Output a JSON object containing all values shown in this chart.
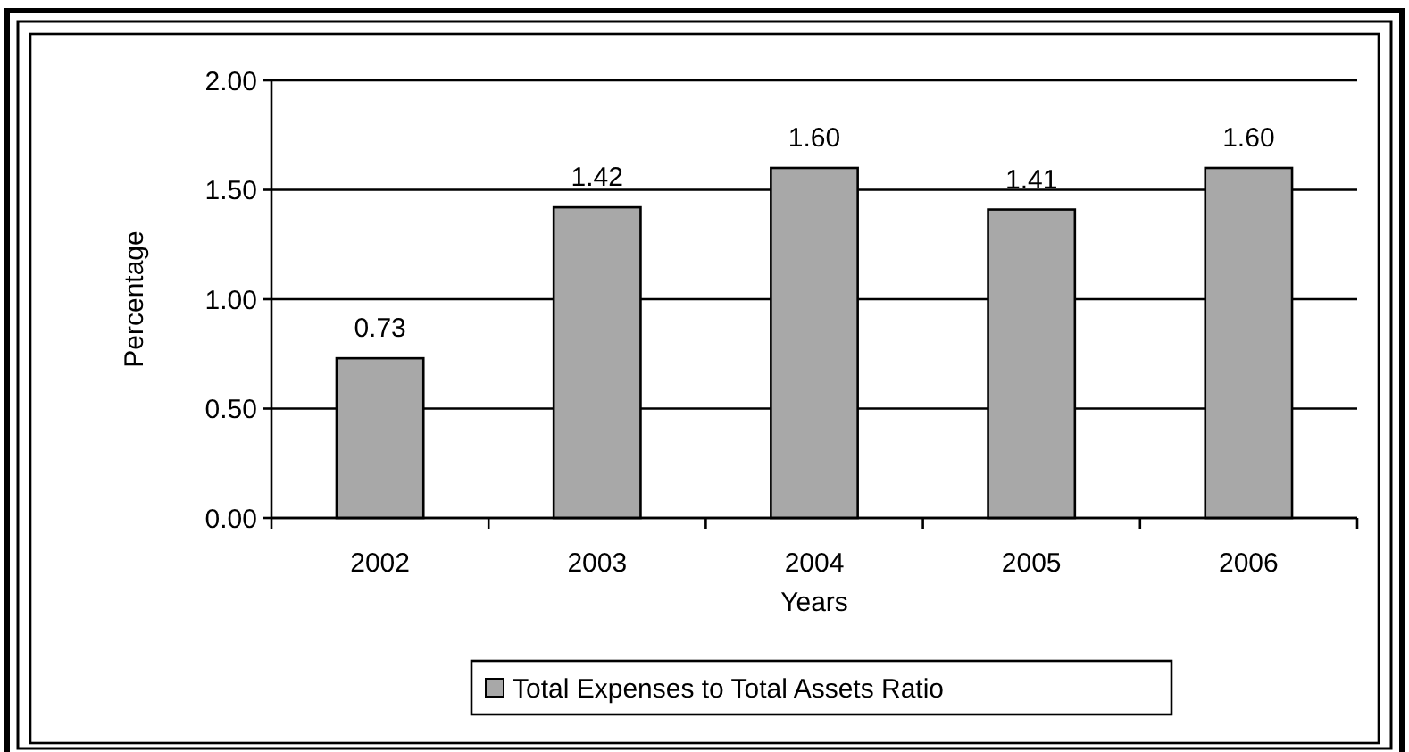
{
  "chart_data": {
    "type": "bar",
    "xlabel": "Years",
    "ylabel": "Percentage",
    "categories": [
      "2002",
      "2003",
      "2004",
      "2005",
      "2006"
    ],
    "series": [
      {
        "name": "Total Expenses to Total Assets Ratio",
        "color": "#a8a8a8",
        "values": [
          0.73,
          1.42,
          1.6,
          1.41,
          1.6
        ],
        "value_labels": [
          "0.73",
          "1.42",
          "1.60",
          "1.41",
          "1.60"
        ]
      }
    ],
    "ylim": [
      0,
      2
    ],
    "yticks": [
      {
        "value": 0,
        "label": "0.00"
      },
      {
        "value": 0.5,
        "label": "0.50"
      },
      {
        "value": 1,
        "label": "1.00"
      },
      {
        "value": 1.5,
        "label": "1.50"
      },
      {
        "value": 2,
        "label": "2.00"
      }
    ],
    "grid": "y",
    "legend": "bottom"
  }
}
